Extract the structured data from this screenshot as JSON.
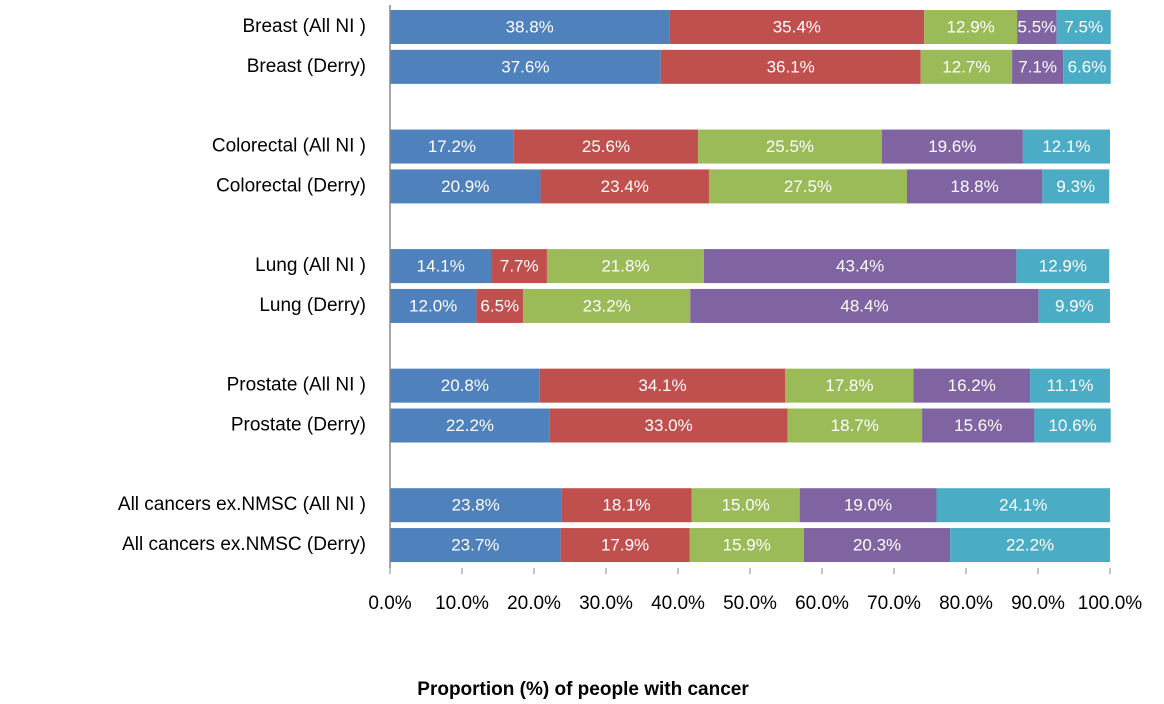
{
  "chart_data": {
    "type": "stacked_bar_horizontal",
    "x_axis_label": "Proportion (%) of people with cancer",
    "categories": [
      "Breast (All NI )",
      "Breast (Derry)",
      null,
      "Colorectal (All NI )",
      "Colorectal (Derry)",
      null,
      "Lung (All NI )",
      "Lung (Derry)",
      null,
      "Prostate  (All NI )",
      "Prostate (Derry)",
      null,
      "All cancers ex.NMSC  (All NI )",
      "All cancers ex.NMSC (Derry)"
    ],
    "series": [
      {
        "color": "#4f81bd",
        "values": [
          38.8,
          37.6,
          null,
          17.2,
          20.9,
          null,
          14.1,
          12.0,
          null,
          20.8,
          22.2,
          null,
          23.8,
          23.7
        ],
        "value_labels": [
          "38.8%",
          "37.6%",
          null,
          "17.2%",
          "20.9%",
          null,
          "14.1%",
          "12.0%",
          null,
          "20.8%",
          "22.2%",
          null,
          "23.8%",
          "23.7%"
        ]
      },
      {
        "color": "#c0504d",
        "values": [
          35.4,
          36.1,
          null,
          25.6,
          23.4,
          null,
          7.7,
          6.5,
          null,
          34.1,
          33.0,
          null,
          18.1,
          17.9
        ],
        "value_labels": [
          "35.4%",
          "36.1%",
          null,
          "25.6%",
          "23.4%",
          null,
          "7.7%",
          "6.5%",
          null,
          "34.1%",
          "33.0%",
          null,
          "18.1%",
          "17.9%"
        ]
      },
      {
        "color": "#9bbb59",
        "values": [
          12.9,
          12.7,
          null,
          25.5,
          27.5,
          null,
          21.8,
          23.2,
          null,
          17.8,
          18.7,
          null,
          15.0,
          15.9
        ],
        "value_labels": [
          "12.9%",
          "12.7%",
          null,
          "25.5%",
          "27.5%",
          null,
          "21.8%",
          "23.2%",
          null,
          "17.8%",
          "18.7%",
          null,
          "15.0%",
          "15.9%"
        ]
      },
      {
        "color": "#8064a2",
        "values": [
          5.5,
          7.1,
          null,
          19.6,
          18.8,
          null,
          43.4,
          48.4,
          null,
          16.2,
          15.6,
          null,
          19.0,
          20.3
        ],
        "value_labels": [
          "5.5%",
          "7.1%",
          null,
          "19.6%",
          "18.8%",
          null,
          "43.4%",
          "48.4%",
          null,
          "16.2%",
          "15.6%",
          null,
          "19.0%",
          "20.3%"
        ]
      },
      {
        "color": "#4bacc6",
        "values": [
          7.5,
          6.6,
          null,
          12.1,
          9.3,
          null,
          12.9,
          9.9,
          null,
          11.1,
          10.6,
          null,
          24.1,
          22.2
        ],
        "value_labels": [
          "7.5%",
          "6.6%",
          null,
          "12.1%",
          "9.3%",
          null,
          "12.9%",
          "9.9%",
          null,
          "11.1%",
          "10.6%",
          null,
          "24.1%",
          "22.2%"
        ]
      }
    ],
    "xlim": [
      0,
      100
    ],
    "xticks": [
      {
        "value": 0,
        "label": "0.0%"
      },
      {
        "value": 10,
        "label": "10.0%"
      },
      {
        "value": 20,
        "label": "20.0%"
      },
      {
        "value": 30,
        "label": "30.0%"
      },
      {
        "value": 40,
        "label": "40.0%"
      },
      {
        "value": 50,
        "label": "50.0%"
      },
      {
        "value": 60,
        "label": "60.0%"
      },
      {
        "value": 70,
        "label": "70.0%"
      },
      {
        "value": 80,
        "label": "80.0%"
      },
      {
        "value": 90,
        "label": "90.0%"
      },
      {
        "value": 100,
        "label": "100.0%"
      }
    ],
    "grid": false
  }
}
